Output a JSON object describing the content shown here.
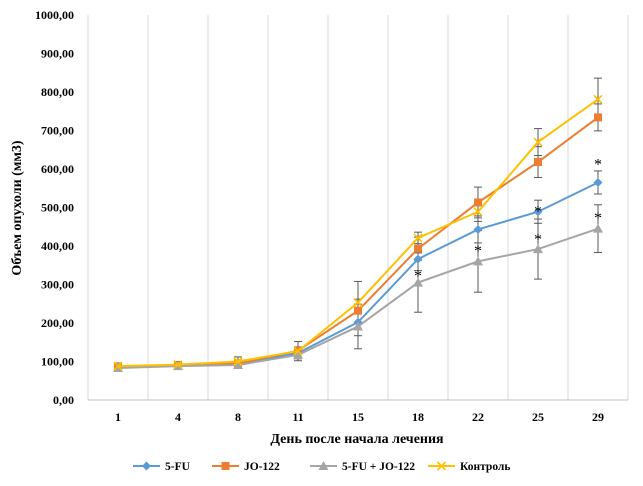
{
  "chart_data": {
    "type": "line",
    "title": "",
    "xlabel": "День после начала лечения",
    "ylabel": "Объем опухоли (мм3)",
    "ylim": [
      0,
      1000
    ],
    "y_ticks": [
      "0,00",
      "100,00",
      "200,00",
      "300,00",
      "400,00",
      "500,00",
      "600,00",
      "700,00",
      "800,00",
      "900,00",
      "1000,00"
    ],
    "categories": [
      "1",
      "4",
      "8",
      "11",
      "15",
      "18",
      "22",
      "25",
      "29"
    ],
    "grid": "vertical",
    "legend_position": "bottom",
    "series": [
      {
        "name": "5-FU",
        "color": "#5B9BD5",
        "marker": "diamond",
        "values": [
          87,
          90,
          95,
          122,
          202,
          366,
          443,
          489,
          565
        ],
        "error": [
          8,
          8,
          8,
          10,
          35,
          30,
          35,
          30,
          30
        ]
      },
      {
        "name": "JO-122",
        "color": "#ED7D31",
        "marker": "square",
        "values": [
          86,
          90,
          95,
          128,
          232,
          393,
          513,
          618,
          734
        ],
        "error": [
          8,
          8,
          8,
          10,
          30,
          30,
          40,
          40,
          35
        ]
      },
      {
        "name": "5-FU + JO-122",
        "color": "#A5A5A5",
        "marker": "triangle",
        "values": [
          83,
          88,
          91,
          117,
          191,
          305,
          360,
          392,
          445
        ],
        "error": [
          8,
          8,
          8,
          10,
          58,
          77,
          80,
          78,
          62
        ]
      },
      {
        "name": "Контроль",
        "color": "#FFC000",
        "marker": "x",
        "values": [
          88,
          92,
          100,
          127,
          253,
          421,
          489,
          670,
          781
        ],
        "error": [
          8,
          8,
          12,
          25,
          55,
          15,
          25,
          35,
          55
        ]
      }
    ],
    "significance_markers": [
      {
        "category": "18",
        "value": 330,
        "text": "*"
      },
      {
        "category": "22",
        "value": 395,
        "text": "*"
      },
      {
        "category": "25",
        "value": 497,
        "text": "*"
      },
      {
        "category": "25",
        "value": 425,
        "text": "*"
      },
      {
        "category": "29",
        "value": 620,
        "text": "*"
      },
      {
        "category": "29",
        "value": 480,
        "text": "*"
      }
    ]
  }
}
